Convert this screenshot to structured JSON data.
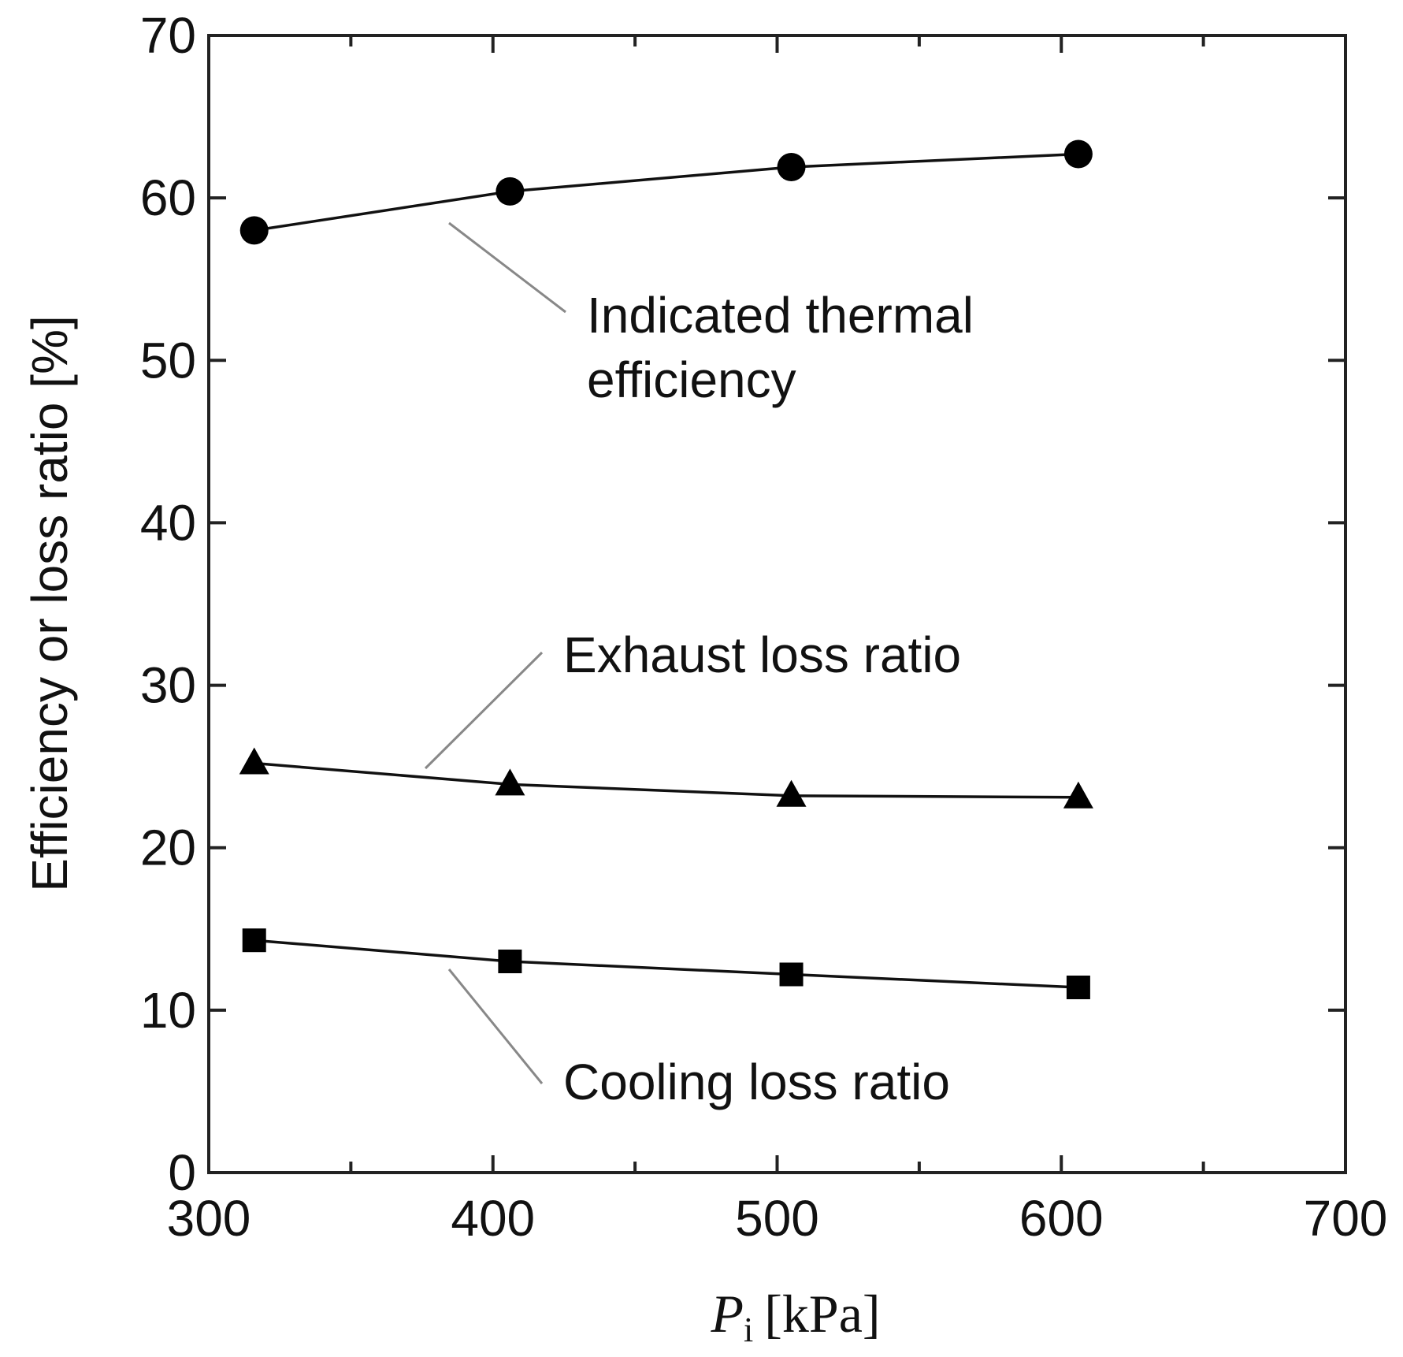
{
  "chart_data": {
    "type": "line",
    "title": "",
    "xlabel": {
      "symbol": "P",
      "subscript": "i",
      "unit": "[kPa]"
    },
    "ylabel": "Efficiency or loss ratio [%]",
    "xlim": [
      300,
      700
    ],
    "ylim": [
      0,
      70
    ],
    "x_major_ticks": [
      300,
      400,
      500,
      600,
      700
    ],
    "x_minor_ticks": [
      350,
      450,
      550,
      650
    ],
    "y_ticks": [
      0,
      10,
      20,
      30,
      40,
      50,
      60,
      70
    ],
    "x_tick_labels": [
      "300",
      "400",
      "500",
      "600",
      "700"
    ],
    "y_tick_labels": [
      "0",
      "10",
      "20",
      "30",
      "40",
      "50",
      "60",
      "70"
    ],
    "grid": false,
    "series": [
      {
        "name": "Indicated thermal efficiency",
        "marker": "circle",
        "x": [
          316,
          406,
          505,
          606
        ],
        "values": [
          58.0,
          60.4,
          61.9,
          62.7
        ],
        "annotation": {
          "lines": [
            "Indicated thermal",
            "efficiency"
          ]
        }
      },
      {
        "name": "Exhaust loss ratio",
        "marker": "triangle",
        "x": [
          316,
          406,
          505,
          606
        ],
        "values": [
          25.2,
          23.9,
          23.2,
          23.1
        ],
        "annotation": {
          "lines": [
            "Exhaust loss ratio"
          ]
        }
      },
      {
        "name": "Cooling loss ratio",
        "marker": "square",
        "x": [
          316,
          406,
          505,
          606
        ],
        "values": [
          14.3,
          13.0,
          12.2,
          11.4
        ],
        "annotation": {
          "lines": [
            "Cooling loss ratio"
          ]
        }
      }
    ]
  }
}
